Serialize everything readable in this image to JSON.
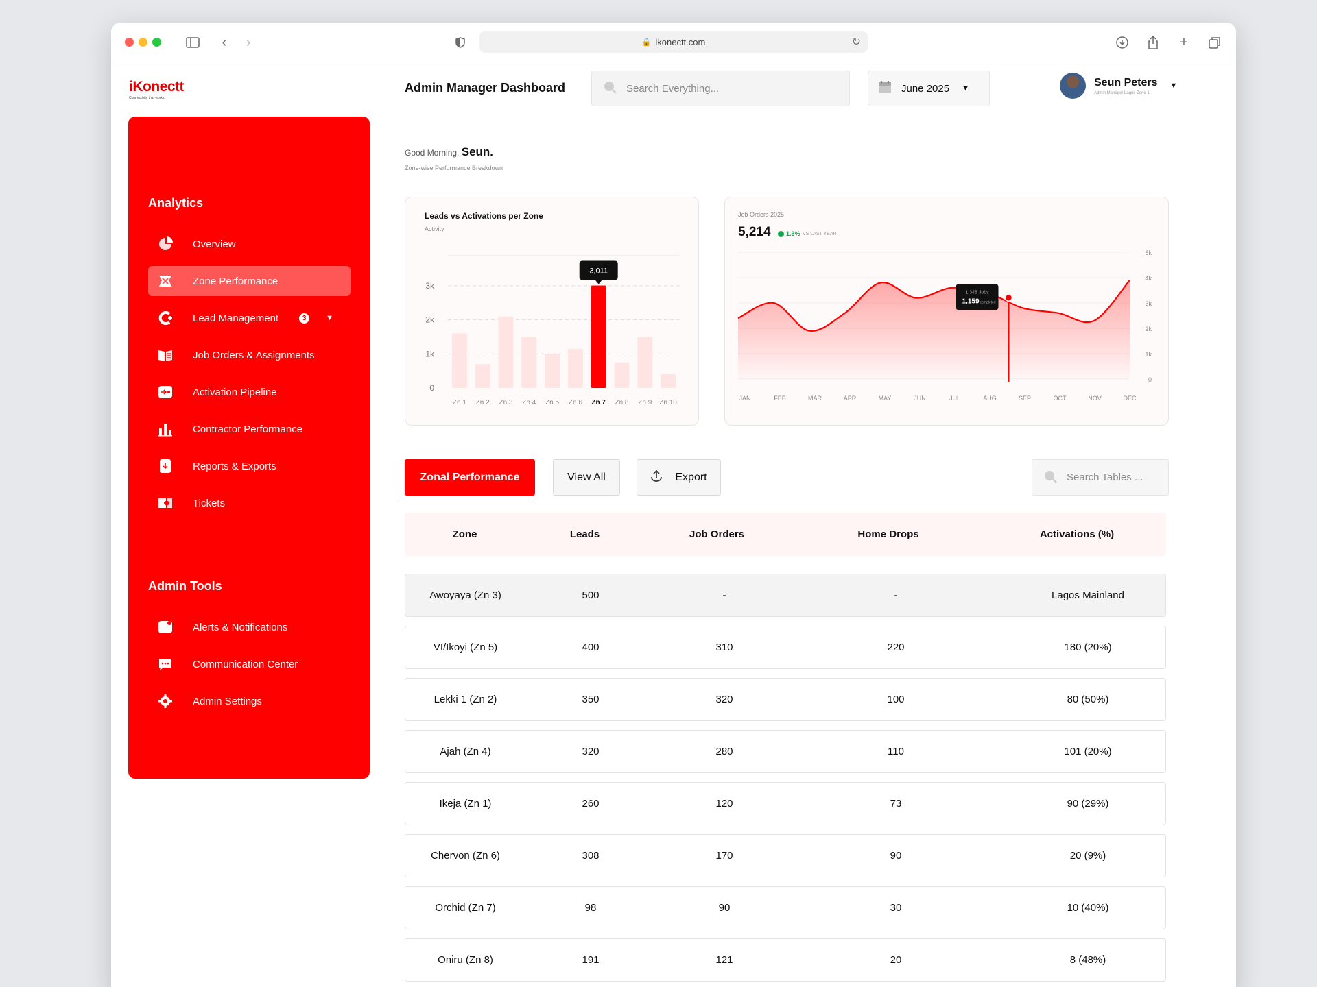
{
  "browser": {
    "url": "ikonectt.com"
  },
  "brand": {
    "name": "iKonectt",
    "tagline": "Connectivity that works.",
    "accent": "#ff0000"
  },
  "sidebar": {
    "analytics_title": "Analytics",
    "items": [
      {
        "label": "Overview",
        "icon": "pie-chart-icon"
      },
      {
        "label": "Zone Performance",
        "icon": "zone-map-icon",
        "active": true
      },
      {
        "label": "Lead Management",
        "icon": "lead-icon",
        "badge": "3"
      },
      {
        "label": "Job Orders & Assignments",
        "icon": "job-orders-icon"
      },
      {
        "label": "Activation Pipeline",
        "icon": "pipeline-icon"
      },
      {
        "label": "Contractor Performance",
        "icon": "bar-chart-icon"
      },
      {
        "label": "Reports & Exports",
        "icon": "report-icon"
      },
      {
        "label": "Tickets",
        "icon": "ticket-icon"
      }
    ],
    "admin_title": "Admin Tools",
    "admin_items": [
      {
        "label": "Alerts & Notifications",
        "icon": "bell-icon"
      },
      {
        "label": "Communication Center",
        "icon": "chat-icon"
      },
      {
        "label": "Admin Settings",
        "icon": "gear-icon"
      }
    ]
  },
  "header": {
    "title": "Admin Manager Dashboard",
    "search_placeholder": "Search Everything...",
    "date": "June 2025",
    "user_name": "Seun Peters",
    "user_role": "Admin Manager Lagos Zone 1"
  },
  "greeting": {
    "prefix": "Good Morning,",
    "name": "Seun.",
    "subtitle": "Zone-wise Performance Breakdown"
  },
  "chart_data": [
    {
      "type": "bar",
      "title": "Leads vs Activations per Zone",
      "subtitle": "Activity",
      "categories": [
        "Zn 1",
        "Zn 2",
        "Zn 3",
        "Zn 4",
        "Zn 5",
        "Zn 6",
        "Zn 7",
        "Zn 8",
        "Zn 9",
        "Zn 10"
      ],
      "values": [
        1600,
        700,
        2100,
        1500,
        1000,
        1150,
        3011,
        750,
        1500,
        400
      ],
      "highlight_category": "Zn 7",
      "tooltip": "3,011",
      "yticks": [
        "0",
        "1k",
        "2k",
        "3k"
      ],
      "ylim": [
        0,
        3000
      ],
      "colors": {
        "bar": "#ffe4e4",
        "highlight": "#ff0000"
      }
    },
    {
      "type": "area",
      "title": "Job Orders 2025",
      "total": "5,214",
      "change": "1.3%",
      "change_label": "VS LAST YEAR",
      "x": [
        "JAN",
        "FEB",
        "MAR",
        "APR",
        "MAY",
        "JUN",
        "JUL",
        "AUG",
        "SEP",
        "OCT",
        "NOV",
        "DEC"
      ],
      "values": [
        2400,
        3000,
        1900,
        2600,
        3800,
        3200,
        3600,
        3400,
        2800,
        2600,
        2300,
        3900
      ],
      "yticks": [
        "0",
        "1k",
        "2k",
        "3k",
        "4k",
        "5k"
      ],
      "ylim": [
        0,
        5000
      ],
      "tooltip": {
        "line1": "1,348 Jobs",
        "value": "1,159",
        "suffix": "completed"
      },
      "marker_position": "AUG–SEP",
      "colors": {
        "line": "#ff0000"
      }
    }
  ],
  "toolbar": {
    "primary": "Zonal Performance",
    "view_all": "View All",
    "export": "Export",
    "search_placeholder": "Search Tables ..."
  },
  "table": {
    "headers": [
      "Zone",
      "Leads",
      "Job Orders",
      "Home Drops",
      "Activations (%)"
    ],
    "rows": [
      [
        "Awoyaya (Zn 3)",
        "500",
        "-",
        "-",
        "Lagos Mainland"
      ],
      [
        "VI/Ikoyi (Zn 5)",
        "400",
        "310",
        "220",
        "180  (20%)"
      ],
      [
        "Lekki 1 (Zn 2)",
        "350",
        "320",
        "100",
        "80  (50%)"
      ],
      [
        "Ajah (Zn 4)",
        "320",
        "280",
        "110",
        "101  (20%)"
      ],
      [
        "Ikeja (Zn 1)",
        "260",
        "120",
        "73",
        "90  (29%)"
      ],
      [
        "Chervon (Zn 6)",
        "308",
        "170",
        "90",
        "20  (9%)"
      ],
      [
        "Orchid (Zn 7)",
        "98",
        "90",
        "30",
        "10  (40%)"
      ],
      [
        "Oniru (Zn 8)",
        "191",
        "121",
        "20",
        "8  (48%)"
      ]
    ]
  }
}
